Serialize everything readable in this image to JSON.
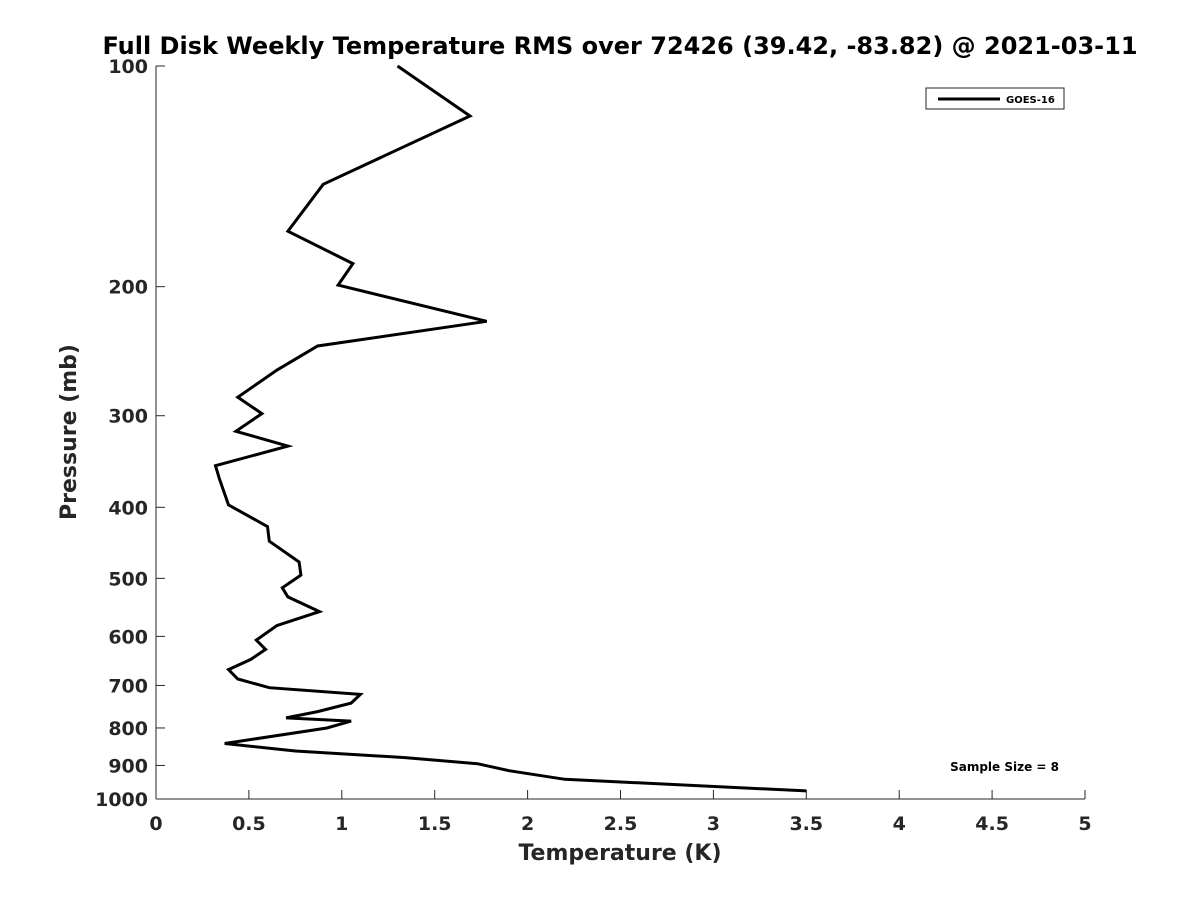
{
  "chart_data": {
    "type": "line",
    "title": "Full Disk Weekly Temperature RMS over 72426 (39.42, -83.82) @ 2021-03-11",
    "xlabel": "Temperature (K)",
    "ylabel": "Pressure (mb)",
    "xlim": [
      0,
      5
    ],
    "ylim": [
      100,
      1000
    ],
    "y_scale": "log",
    "y_reversed": true,
    "grid": false,
    "legend_position": "top-right",
    "x_ticks": [
      "0",
      "0.5",
      "1",
      "1.5",
      "2",
      "2.5",
      "3",
      "3.5",
      "4",
      "4.5",
      "5"
    ],
    "y_ticks": [
      "100",
      "200",
      "300",
      "400",
      "500",
      "600",
      "700",
      "800",
      "900",
      "1000"
    ],
    "annotation": "Sample Size = 8",
    "line_color": "#000000",
    "series": [
      {
        "name": "GOES-16",
        "x": [
          1.3,
          1.69,
          0.9,
          0.71,
          1.06,
          0.98,
          1.78,
          0.87,
          0.65,
          0.44,
          0.57,
          0.43,
          0.71,
          0.32,
          0.34,
          0.39,
          0.6,
          0.61,
          0.77,
          0.78,
          0.68,
          0.71,
          0.88,
          0.65,
          0.54,
          0.59,
          0.51,
          0.39,
          0.44,
          0.61,
          1.1,
          1.05,
          0.87,
          0.7,
          1.05,
          0.92,
          0.37,
          0.75,
          1.34,
          1.73,
          1.9,
          2.2,
          3.5
        ],
        "y": [
          100,
          117,
          145,
          168,
          186,
          199,
          223,
          241,
          260,
          283,
          298,
          315,
          330,
          351,
          365,
          397,
          425,
          445,
          475,
          495,
          515,
          530,
          555,
          580,
          607,
          625,
          645,
          666,
          686,
          705,
          720,
          740,
          760,
          775,
          783,
          800,
          840,
          860,
          878,
          895,
          915,
          940,
          975
        ]
      }
    ]
  }
}
